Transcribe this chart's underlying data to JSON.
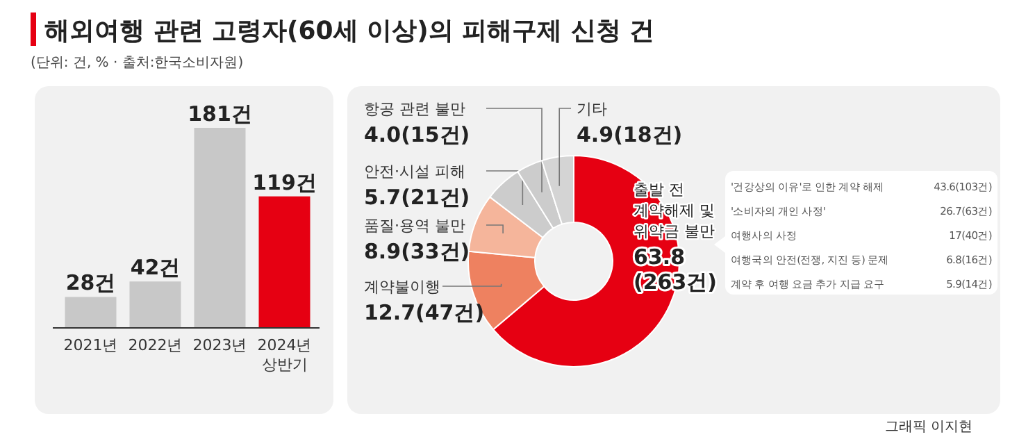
{
  "chart_data": [
    {
      "type": "bar",
      "title": "해외여행 관련 고령자(60세 이상)의 피해구제 신청 건",
      "subtitle": "(단위: 건, % · 출처:한국소비자원)",
      "categories": [
        "2021년",
        "2022년",
        "2023년",
        "2024년\n상반기"
      ],
      "values": [
        28,
        42,
        181,
        119
      ],
      "colors": [
        "#c8c8c8",
        "#c8c8c8",
        "#c8c8c8",
        "#e60012"
      ],
      "value_labels": [
        "28건",
        "42건",
        "181건",
        "119건"
      ],
      "annotations": [
        "그래픽 이지현"
      ]
    },
    {
      "type": "donut",
      "categories": [
        "출발 전\n계약해제 및\n위약금 불만",
        "계약불이행",
        "품질·용역 불만",
        "안전·시설 피해",
        "항공 관련 불만",
        "기타"
      ],
      "values": [
        63.8,
        12.7,
        8.9,
        5.7,
        4.0,
        4.9
      ],
      "colors": [
        "#e60012",
        "#ee8160",
        "#f5b59b",
        "#cccccc",
        "#cccccc",
        "#d4d4d4"
      ],
      "value_labels": [
        "63.8\n(263건)",
        "12.7(47건)",
        "8.9(33건)",
        "5.7(21건)",
        "4.0(15건)",
        "4.9(18건)"
      ]
    },
    {
      "type": "other",
      "categories": [
        "'건강상의 이유'로 인한 계약 해제",
        "'소비자의 개인 사정'",
        "여행사의 사정",
        "여행국의 안전(전쟁, 지진 등) 문제",
        "계약 후 여행 요금 추가 지급 요구"
      ],
      "values": [
        43.6,
        26.7,
        17,
        6.8,
        5.9
      ],
      "value_labels": [
        "43.6(103건)",
        "26.7(63건)",
        "17(40건)",
        "6.8(16건)",
        "5.9(14건)"
      ]
    }
  ]
}
